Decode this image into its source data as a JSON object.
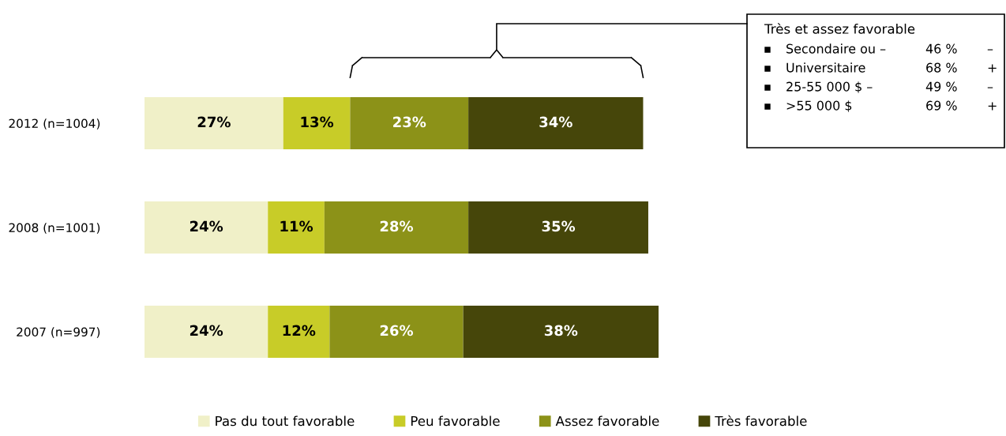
{
  "chart_data": {
    "type": "bar",
    "orientation": "horizontal",
    "stacked": true,
    "categories": [
      "2012 (n=1004)",
      "2008 (n=1001)",
      "2007 (n=997)"
    ],
    "series": [
      {
        "name": "Pas du tout favorable",
        "color": "#f0f0c8",
        "values": [
          27,
          24,
          24
        ],
        "value_labels": [
          "27%",
          "24%",
          "24%"
        ]
      },
      {
        "name": "Peu favorable",
        "color": "#c8cc28",
        "values": [
          13,
          11,
          12
        ],
        "value_labels": [
          "13%",
          "11%",
          "12%"
        ]
      },
      {
        "name": "Assez favorable",
        "color": "#8c9218",
        "values": [
          23,
          28,
          26
        ],
        "value_labels": [
          "23%",
          "28%",
          "26%"
        ]
      },
      {
        "name": "Très favorable",
        "color": "#46460a",
        "values": [
          34,
          35,
          38
        ],
        "value_labels": [
          "34%",
          "35%",
          "38%"
        ]
      }
    ],
    "xlim": [
      0,
      100
    ],
    "tick_labels": "y",
    "legend": "bottom",
    "grid": false,
    "annotations": [
      "Très et assez favorable",
      "Secondaire ou –\t46 %\t–",
      "Universitaire\t68 %\t+",
      "25-55 000 $ –\t49 %\t–",
      ">55 000 $\t69 %\t+"
    ]
  }
}
